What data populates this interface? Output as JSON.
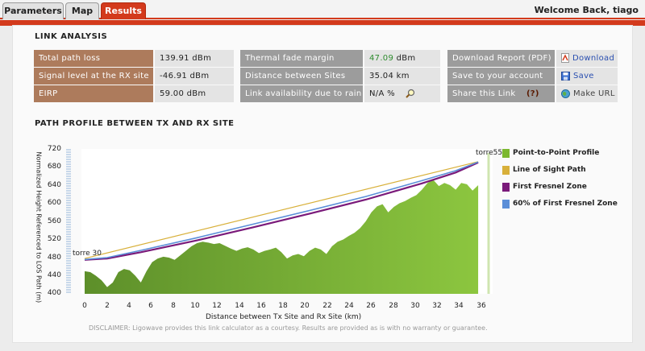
{
  "tabs": [
    {
      "label": "Parameters",
      "active": false
    },
    {
      "label": "Map",
      "active": false
    },
    {
      "label": "Results",
      "active": true
    }
  ],
  "welcome": "Welcome Back, tiago",
  "link_analysis": {
    "title": "LINK ANALYSIS",
    "col1": [
      {
        "label": "Total path loss",
        "value": "139.91 dBm"
      },
      {
        "label": "Signal level at the RX site",
        "value": "-46.91 dBm"
      },
      {
        "label": "EIRP",
        "value": "59.00 dBm"
      }
    ],
    "col2": [
      {
        "label": "Thermal fade margin",
        "value": "47.09",
        "unit": "dBm"
      },
      {
        "label": "Distance between Sites",
        "value": "35.04 km"
      },
      {
        "label": "Link availability due to rain",
        "value": "N/A %"
      }
    ],
    "col3": [
      {
        "label": "Download Report (PDF)",
        "action": "Download"
      },
      {
        "label": "Save to your account",
        "action": "Save"
      },
      {
        "label": "Share this Link",
        "help": "(?)",
        "action": "Make URL"
      }
    ]
  },
  "profile": {
    "title": "PATH PROFILE BETWEEN TX AND RX SITE",
    "tx_site": "torre 30",
    "rx_site": "torre55",
    "disclaimer": "DISCLAIMER: Ligowave provides this link calculator as a courtesy.  Results are provided as is with no warranty or guarantee."
  },
  "chart_data": {
    "type": "area",
    "xlabel": "Distance between Tx Site and Rx Site (km)",
    "ylabel": "Normalized Height Referenced to LOS Path (m)",
    "xlim": [
      0,
      36
    ],
    "ylim": [
      400,
      720
    ],
    "x_ticks": [
      "0",
      "2",
      "4",
      "6",
      "8",
      "10",
      "12",
      "14",
      "16",
      "18",
      "20",
      "22",
      "24",
      "26",
      "28",
      "30",
      "32",
      "34",
      "36"
    ],
    "y_ticks": [
      "720",
      "680",
      "640",
      "600",
      "560",
      "520",
      "480",
      "440",
      "400"
    ],
    "legend": [
      "Point-to-Point Profile",
      "Line of Sight Path",
      "First Fresnel Zone",
      "60% of First Fresnel Zone"
    ],
    "colors": {
      "profile": "#7cb82f",
      "los": "#d8b03a",
      "fresnel": "#7a1a7a",
      "fresnel60": "#5b8fd8"
    },
    "series": [
      {
        "name": "Point-to-Point Profile",
        "x": [
          0,
          0.5,
          1.0,
          1.5,
          2.0,
          2.5,
          3.0,
          3.5,
          4.0,
          4.5,
          5.0,
          5.5,
          6.0,
          6.5,
          7.0,
          7.5,
          8.0,
          8.5,
          9.0,
          9.5,
          10.0,
          10.5,
          11.0,
          11.5,
          12.0,
          12.5,
          13.0,
          13.5,
          14.0,
          14.5,
          15.0,
          15.5,
          16.0,
          16.5,
          17.0,
          17.5,
          18.0,
          18.5,
          19.0,
          19.5,
          20.0,
          20.5,
          21.0,
          21.5,
          22.0,
          22.5,
          23.0,
          23.5,
          24.0,
          24.5,
          25.0,
          25.5,
          26.0,
          26.5,
          27.0,
          27.5,
          28.0,
          28.5,
          29.0,
          29.5,
          30.0,
          30.5,
          31.0,
          31.5,
          32.0,
          32.5,
          33.0,
          33.5,
          34.0,
          34.5,
          35.0
        ],
        "values": [
          450,
          448,
          440,
          430,
          415,
          425,
          448,
          455,
          452,
          440,
          425,
          450,
          470,
          478,
          482,
          480,
          475,
          485,
          495,
          505,
          512,
          515,
          513,
          510,
          512,
          506,
          500,
          495,
          500,
          503,
          498,
          490,
          495,
          498,
          502,
          492,
          478,
          485,
          488,
          483,
          495,
          502,
          498,
          488,
          505,
          515,
          520,
          528,
          535,
          545,
          560,
          580,
          593,
          598,
          580,
          592,
          600,
          605,
          612,
          618,
          630,
          645,
          652,
          638,
          645,
          640,
          630,
          645,
          642,
          628,
          640
        ]
      },
      {
        "name": "Line of Sight Path",
        "x": [
          0,
          35
        ],
        "values": [
          478,
          692
        ]
      },
      {
        "name": "First Fresnel Zone",
        "x": [
          0,
          2,
          5,
          10,
          15,
          20,
          25,
          30,
          33,
          35
        ],
        "values": [
          475,
          478,
          492,
          518,
          547,
          577,
          608,
          644,
          668,
          690
        ]
      },
      {
        "name": "60% of First Fresnel Zone",
        "x": [
          0,
          2,
          5,
          10,
          15,
          20,
          25,
          30,
          33,
          35
        ],
        "values": [
          476,
          480,
          496,
          524,
          554,
          584,
          615,
          650,
          672,
          691
        ]
      }
    ]
  }
}
